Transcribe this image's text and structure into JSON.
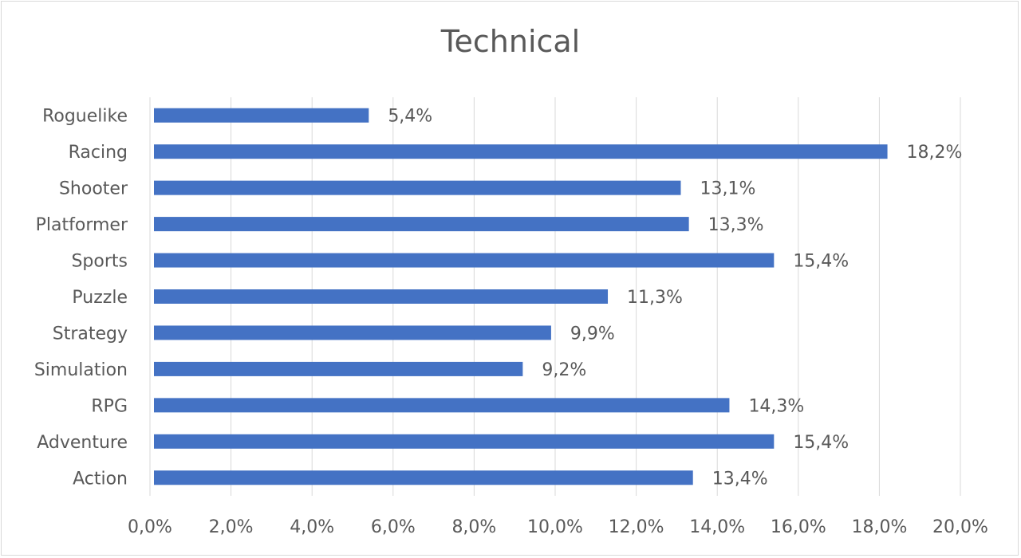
{
  "chart_data": {
    "type": "bar",
    "orientation": "horizontal",
    "title": "Technical",
    "categories": [
      "Action",
      "Adventure",
      "RPG",
      "Simulation",
      "Strategy",
      "Puzzle",
      "Sports",
      "Platformer",
      "Shooter",
      "Racing",
      "Roguelike"
    ],
    "values": [
      13.4,
      15.4,
      14.3,
      9.2,
      9.9,
      11.3,
      15.4,
      13.3,
      13.1,
      18.2,
      5.4
    ],
    "data_labels": [
      "13,4%",
      "15,4%",
      "14,3%",
      "9,2%",
      "9,9%",
      "11,3%",
      "15,4%",
      "13,3%",
      "13,1%",
      "18,2%",
      "5,4%"
    ],
    "x_ticks": [
      "0,0%",
      "2,0%",
      "4,0%",
      "6,0%",
      "8,0%",
      "10,0%",
      "12,0%",
      "14,0%",
      "16,0%",
      "18,0%",
      "20,0%"
    ],
    "xlim": [
      0,
      20
    ],
    "xlabel": "",
    "ylabel": "",
    "grid": "vertical",
    "legend": "none",
    "bar_color": "#4472c4",
    "grid_color": "#d9d9d9"
  }
}
